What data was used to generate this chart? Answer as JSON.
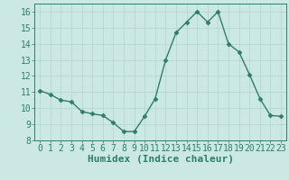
{
  "x": [
    0,
    1,
    2,
    3,
    4,
    5,
    6,
    7,
    8,
    9,
    10,
    11,
    12,
    13,
    14,
    15,
    16,
    17,
    18,
    19,
    20,
    21,
    22,
    23
  ],
  "y": [
    11.1,
    10.85,
    10.5,
    10.4,
    9.8,
    9.65,
    9.55,
    9.1,
    8.55,
    8.55,
    9.5,
    10.6,
    13.0,
    14.7,
    15.35,
    16.0,
    15.35,
    16.0,
    14.0,
    13.5,
    12.1,
    10.6,
    9.55,
    9.5
  ],
  "line_color": "#2e7d6e",
  "marker": "D",
  "marker_size": 2.5,
  "bg_color": "#cce8e4",
  "grid_color": "#b0d4cf",
  "xlabel": "Humidex (Indice chaleur)",
  "ylim": [
    8,
    16.5
  ],
  "xlim": [
    -0.5,
    23.5
  ],
  "yticks": [
    8,
    9,
    10,
    11,
    12,
    13,
    14,
    15,
    16
  ],
  "xticks": [
    0,
    1,
    2,
    3,
    4,
    5,
    6,
    7,
    8,
    9,
    10,
    11,
    12,
    13,
    14,
    15,
    16,
    17,
    18,
    19,
    20,
    21,
    22,
    23
  ],
  "tick_color": "#2e7d6e",
  "label_color": "#2e7d6e",
  "font_size": 7,
  "xlabel_fontsize": 8
}
